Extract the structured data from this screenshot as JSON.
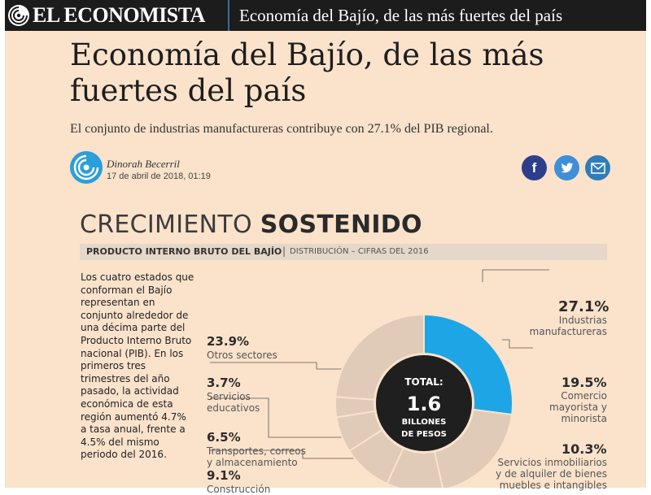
{
  "header": {
    "logo_text": "EL ECONOMISTA",
    "title": "Economía del Bajío, de las más fuertes del país"
  },
  "article": {
    "headline": "Economía del Bajío, de las más fuertes del país",
    "subheadline": "El conjunto de industrias manufactureras contribuye con 27.1% del PIB regional.",
    "author": "Dinorah Becerril",
    "date": "17 de abril de 2018, 01:19"
  },
  "share": {
    "facebook_glyph": "f",
    "twitter_glyph": "🐦",
    "email_glyph": "✉"
  },
  "infographic": {
    "title_light": "CRECIMIENTO",
    "title_bold": "SOSTENIDO",
    "band_main": "PRODUCTO INTERNO BRUTO DEL BAJÍO",
    "band_separator": "|",
    "band_sub": "DISTRIBUCIÓN – CIFRAS DEL 2016",
    "body": "Los cuatro estados que conforman el Bajío representan en conjunto alrededor de una décima parte del Producto Interno Bruto nacional (PIB). En los primeros tres trimestres del año pasado, la actividad económica de esta región aumentó 4.7% a tasa anual, frente a 4.5% del mismo periodo del 2016.",
    "center": {
      "label": "TOTAL:",
      "value": "1.6",
      "unit_line1": "BILLONES",
      "unit_line2": "DE PESOS"
    }
  },
  "chart_data": {
    "type": "pie",
    "title": "CRECIMIENTO SOSTENIDO",
    "subtitle": "PRODUCTO INTERNO BRUTO DEL BAJÍO | DISTRIBUCIÓN – CIFRAS DEL 2016",
    "slices": [
      {
        "pct_label": "27.1%",
        "name": "Industrias manufactureras",
        "value": 27.1,
        "color": "#1ea5e6"
      },
      {
        "pct_label": "19.5%",
        "name": "Comercio mayorista y minorista",
        "value": 19.5,
        "color": "#dfcbb8"
      },
      {
        "pct_label": "10.3%",
        "name": "Servicios inmobiliarios y de alquiler de bienes muebles e intangibles",
        "value": 10.3,
        "color": "#dfcbb8"
      },
      {
        "pct_label": "9.1%",
        "name": "Construcción",
        "value": 9.1,
        "color": "#dfcbb8"
      },
      {
        "pct_label": "6.5%",
        "name": "Transportes, correos y almacenamiento",
        "value": 6.5,
        "color": "#dfcbb8"
      },
      {
        "pct_label": "3.7%",
        "name": "Servicios educativos",
        "value": 3.7,
        "color": "#dfcbb8"
      },
      {
        "pct_label": "23.9%",
        "name": "Otros sectores",
        "value": 23.9,
        "color": "#dfcbb8"
      }
    ],
    "center_total": "1.6 BILLONES DE PESOS"
  },
  "colors": {
    "page_bg": "#fbe2cb",
    "topbar_bg": "#1c1c1c",
    "highlight": "#1ea5e6",
    "segment": "#dfcbb8",
    "center": "#1f1f1f"
  }
}
